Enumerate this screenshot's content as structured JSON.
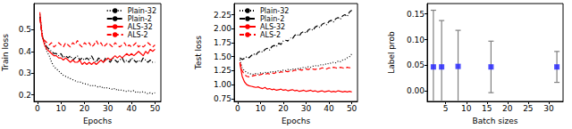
{
  "chart_data": [
    {
      "type": "line",
      "xlabel": "Epochs",
      "ylabel": "Train loss",
      "x": [
        1,
        2,
        3,
        4,
        5,
        6,
        7,
        8,
        9,
        10,
        11,
        12,
        13,
        14,
        15,
        16,
        17,
        18,
        19,
        20,
        21,
        22,
        23,
        24,
        25,
        26,
        27,
        28,
        29,
        30,
        31,
        32,
        33,
        34,
        35,
        36,
        37,
        38,
        39,
        40,
        41,
        42,
        43,
        44,
        45,
        46,
        47,
        48,
        49,
        50
      ],
      "xlim": [
        -1.5,
        52.5
      ],
      "xticks": [
        0,
        10,
        20,
        30,
        40,
        50
      ],
      "ylim": [
        0.17,
        0.62
      ],
      "yticks": [
        {
          "value": 0.2,
          "label": "0.2"
        },
        {
          "value": 0.3,
          "label": "0.3"
        },
        {
          "value": 0.4,
          "label": "0.4"
        },
        {
          "value": 0.5,
          "label": "0.5"
        }
      ],
      "legend": "upper right",
      "series": [
        {
          "name": "Plain-32",
          "color": "#000000",
          "line_style": "dotted",
          "values": [
            0.57,
            0.48,
            0.43,
            0.4,
            0.38,
            0.35,
            0.33,
            0.32,
            0.31,
            0.3,
            0.29,
            0.285,
            0.28,
            0.275,
            0.27,
            0.265,
            0.26,
            0.26,
            0.255,
            0.25,
            0.25,
            0.245,
            0.24,
            0.245,
            0.24,
            0.235,
            0.24,
            0.23,
            0.235,
            0.23,
            0.23,
            0.225,
            0.23,
            0.22,
            0.225,
            0.22,
            0.22,
            0.215,
            0.22,
            0.215,
            0.22,
            0.21,
            0.215,
            0.21,
            0.215,
            0.21,
            0.205,
            0.21,
            0.205,
            0.21
          ]
        },
        {
          "name": "Plain-2",
          "color": "#000000",
          "line_style": "dashdot",
          "values": [
            0.56,
            0.47,
            0.44,
            0.42,
            0.41,
            0.4,
            0.39,
            0.39,
            0.38,
            0.39,
            0.37,
            0.38,
            0.37,
            0.38,
            0.36,
            0.37,
            0.38,
            0.36,
            0.37,
            0.36,
            0.37,
            0.36,
            0.38,
            0.36,
            0.35,
            0.37,
            0.36,
            0.35,
            0.37,
            0.36,
            0.35,
            0.37,
            0.36,
            0.35,
            0.36,
            0.37,
            0.35,
            0.36,
            0.35,
            0.37,
            0.36,
            0.35,
            0.36,
            0.35,
            0.37,
            0.36,
            0.35,
            0.36,
            0.35,
            0.35
          ]
        },
        {
          "name": "ALS-32",
          "color": "#ff0000",
          "line_style": "solid",
          "values": [
            0.58,
            0.47,
            0.43,
            0.41,
            0.4,
            0.39,
            0.38,
            0.38,
            0.37,
            0.37,
            0.36,
            0.37,
            0.36,
            0.35,
            0.36,
            0.35,
            0.35,
            0.36,
            0.34,
            0.35,
            0.34,
            0.35,
            0.34,
            0.35,
            0.34,
            0.35,
            0.36,
            0.35,
            0.36,
            0.37,
            0.36,
            0.37,
            0.38,
            0.37,
            0.38,
            0.37,
            0.38,
            0.39,
            0.38,
            0.39,
            0.38,
            0.39,
            0.4,
            0.39,
            0.38,
            0.4,
            0.39,
            0.41,
            0.4,
            0.41
          ]
        },
        {
          "name": "ALS-2",
          "color": "#ff0000",
          "line_style": "dashed",
          "values": [
            0.55,
            0.47,
            0.45,
            0.44,
            0.43,
            0.44,
            0.42,
            0.43,
            0.44,
            0.43,
            0.42,
            0.44,
            0.43,
            0.42,
            0.44,
            0.43,
            0.45,
            0.43,
            0.42,
            0.44,
            0.43,
            0.44,
            0.42,
            0.43,
            0.45,
            0.43,
            0.44,
            0.42,
            0.43,
            0.44,
            0.43,
            0.42,
            0.44,
            0.43,
            0.42,
            0.43,
            0.44,
            0.42,
            0.43,
            0.42,
            0.43,
            0.44,
            0.42,
            0.43,
            0.42,
            0.43,
            0.44,
            0.43,
            0.42,
            0.43
          ]
        }
      ]
    },
    {
      "type": "line",
      "xlabel": "Epochs",
      "ylabel": "Test loss",
      "x": [
        1,
        2,
        3,
        4,
        5,
        6,
        7,
        8,
        9,
        10,
        11,
        12,
        13,
        14,
        15,
        16,
        17,
        18,
        19,
        20,
        21,
        22,
        23,
        24,
        25,
        26,
        27,
        28,
        29,
        30,
        31,
        32,
        33,
        34,
        35,
        36,
        37,
        38,
        39,
        40,
        41,
        42,
        43,
        44,
        45,
        46,
        47,
        48,
        49,
        50
      ],
      "xlim": [
        -1.5,
        52.5
      ],
      "xticks": [
        0,
        10,
        20,
        30,
        40,
        50
      ],
      "ylim": [
        0.7,
        2.45
      ],
      "yticks": [
        {
          "value": 0.75,
          "label": "0.75"
        },
        {
          "value": 1,
          "label": "1.00"
        },
        {
          "value": 1.25,
          "label": "1.25"
        },
        {
          "value": 1.5,
          "label": "1.50"
        },
        {
          "value": 1.75,
          "label": "1.75"
        },
        {
          "value": 2,
          "label": "2.00"
        },
        {
          "value": 2.25,
          "label": "2.25"
        }
      ],
      "legend": "upper left",
      "series": [
        {
          "name": "Plain-32",
          "color": "#000000",
          "line_style": "dotted",
          "values": [
            1.45,
            1.3,
            1.25,
            1.22,
            1.2,
            1.19,
            1.18,
            1.2,
            1.19,
            1.21,
            1.2,
            1.22,
            1.21,
            1.23,
            1.22,
            1.24,
            1.23,
            1.25,
            1.24,
            1.26,
            1.25,
            1.27,
            1.26,
            1.28,
            1.27,
            1.29,
            1.28,
            1.3,
            1.31,
            1.3,
            1.32,
            1.31,
            1.33,
            1.34,
            1.33,
            1.35,
            1.36,
            1.35,
            1.38,
            1.37,
            1.39,
            1.4,
            1.39,
            1.42,
            1.41,
            1.44,
            1.45,
            1.48,
            1.5,
            1.55
          ]
        },
        {
          "name": "Plain-2",
          "color": "#000000",
          "line_style": "dashdot",
          "values": [
            1.48,
            1.45,
            1.47,
            1.5,
            1.48,
            1.52,
            1.55,
            1.53,
            1.58,
            1.6,
            1.58,
            1.63,
            1.65,
            1.62,
            1.68,
            1.7,
            1.68,
            1.74,
            1.72,
            1.78,
            1.8,
            1.78,
            1.84,
            1.82,
            1.88,
            1.9,
            1.87,
            1.93,
            1.95,
            1.92,
            1.98,
            2.0,
            1.97,
            2.03,
            2.05,
            2.02,
            2.08,
            2.1,
            2.07,
            2.13,
            2.15,
            2.12,
            2.18,
            2.2,
            2.17,
            2.23,
            2.25,
            2.22,
            2.3,
            2.33
          ]
        },
        {
          "name": "ALS-32",
          "color": "#ff0000",
          "line_style": "solid",
          "values": [
            1.38,
            1.15,
            1.05,
            1.0,
            0.98,
            0.97,
            0.96,
            0.95,
            0.96,
            0.94,
            0.93,
            0.95,
            0.92,
            0.93,
            0.91,
            0.92,
            0.9,
            0.91,
            0.92,
            0.9,
            0.91,
            0.89,
            0.9,
            0.91,
            0.89,
            0.9,
            0.88,
            0.89,
            0.9,
            0.88,
            0.89,
            0.9,
            0.88,
            0.89,
            0.87,
            0.88,
            0.89,
            0.87,
            0.88,
            0.89,
            0.87,
            0.88,
            0.87,
            0.89,
            0.88,
            0.87,
            0.88,
            0.87,
            0.88,
            0.87
          ]
        },
        {
          "name": "ALS-2",
          "color": "#ff0000",
          "line_style": "dashed",
          "values": [
            1.4,
            1.25,
            1.18,
            1.15,
            1.14,
            1.15,
            1.16,
            1.17,
            1.16,
            1.18,
            1.19,
            1.18,
            1.2,
            1.19,
            1.21,
            1.2,
            1.22,
            1.21,
            1.23,
            1.22,
            1.24,
            1.23,
            1.25,
            1.24,
            1.26,
            1.25,
            1.27,
            1.26,
            1.27,
            1.28,
            1.27,
            1.29,
            1.28,
            1.27,
            1.29,
            1.28,
            1.3,
            1.29,
            1.28,
            1.3,
            1.29,
            1.31,
            1.3,
            1.29,
            1.31,
            1.3,
            1.29,
            1.31,
            1.3,
            1.31
          ]
        }
      ]
    },
    {
      "type": "scatter",
      "xlabel": "Batch sizes",
      "ylabel": "Label prob",
      "x": [
        2,
        4,
        8,
        16,
        32
      ],
      "xlim": [
        0.5,
        33.5
      ],
      "xticks": [
        5,
        10,
        15,
        20,
        25,
        30
      ],
      "ylim": [
        -0.02,
        0.17
      ],
      "yticks": [
        {
          "value": 0,
          "label": "0.00"
        },
        {
          "value": 0.05,
          "label": "0.05"
        },
        {
          "value": 0.1,
          "label": "0.10"
        },
        {
          "value": 0.15,
          "label": "0.15"
        }
      ],
      "series": [
        {
          "color": "#1f1fff",
          "marker": "square",
          "values": [
            0.047,
            0.047,
            0.048,
            0.047,
            0.047
          ],
          "errors": [
            0.11,
            0.09,
            0.07,
            0.05,
            0.03
          ]
        }
      ]
    }
  ]
}
